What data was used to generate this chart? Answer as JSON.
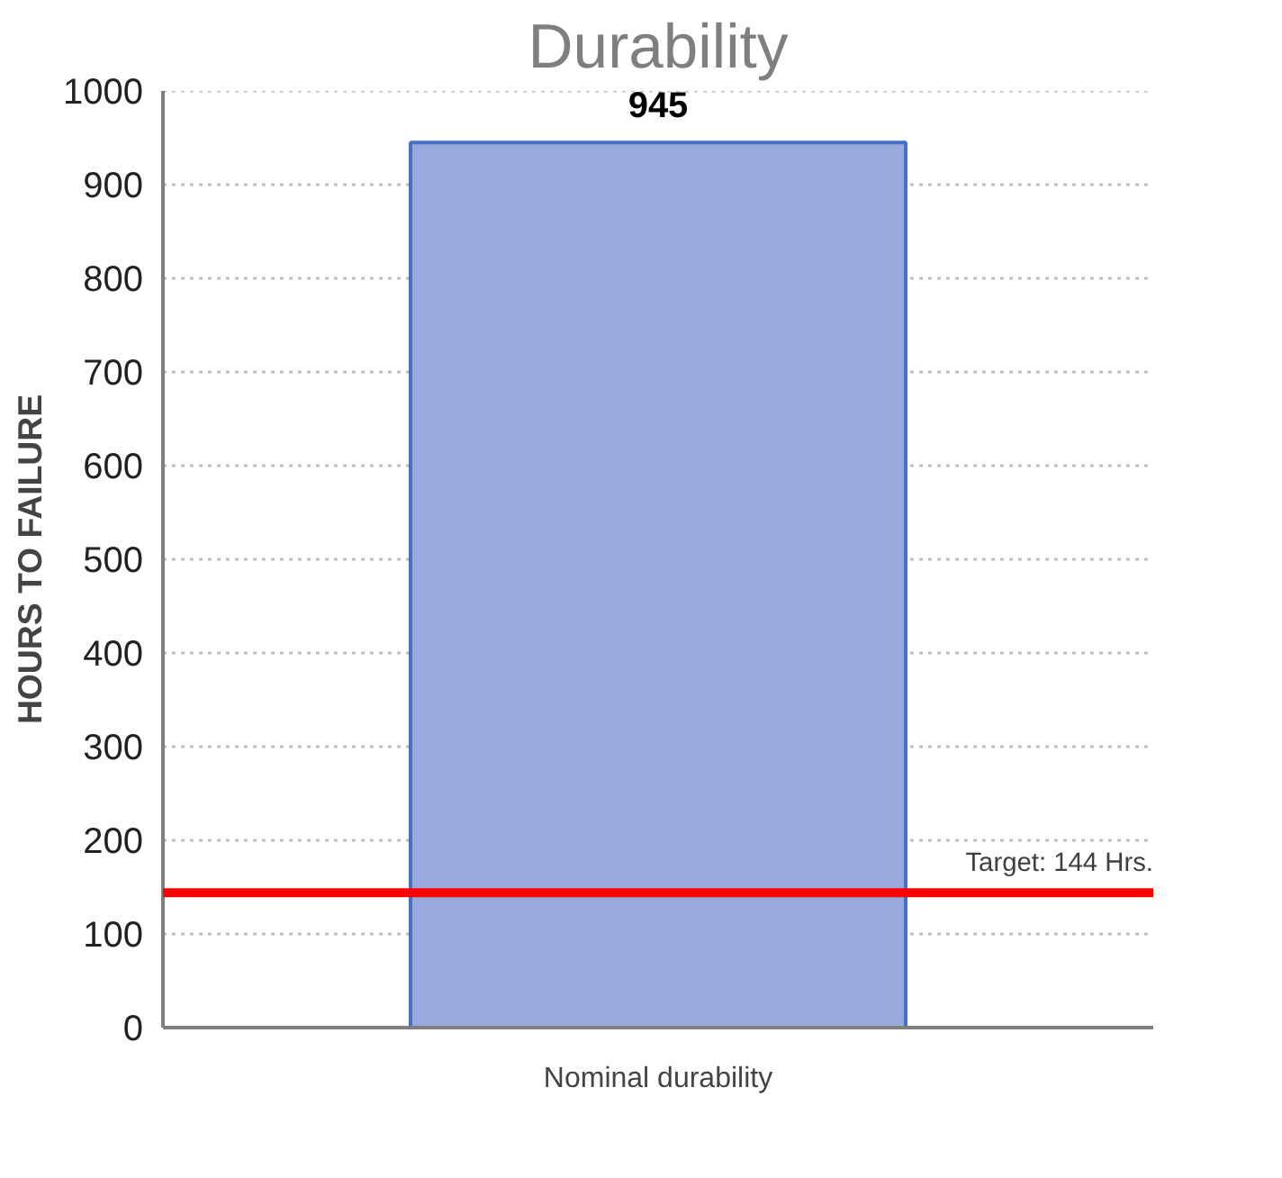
{
  "chart_data": {
    "type": "bar",
    "title": "Durability",
    "ylabel": "HOURS TO FAILURE",
    "categories": [
      "Nominal durability"
    ],
    "series": [
      {
        "color": "#98aadb",
        "values": [
          945
        ]
      }
    ],
    "data_labels": true,
    "ylim": [
      0,
      1000
    ],
    "yticks": [
      0,
      100,
      200,
      300,
      400,
      500,
      600,
      700,
      800,
      900,
      1000
    ],
    "grid": "y",
    "ref_lines": [
      {
        "axis": "y",
        "value": 144,
        "label": "Target: 144 Hrs.",
        "color": "#ff0000",
        "line_style": "solid"
      }
    ]
  }
}
